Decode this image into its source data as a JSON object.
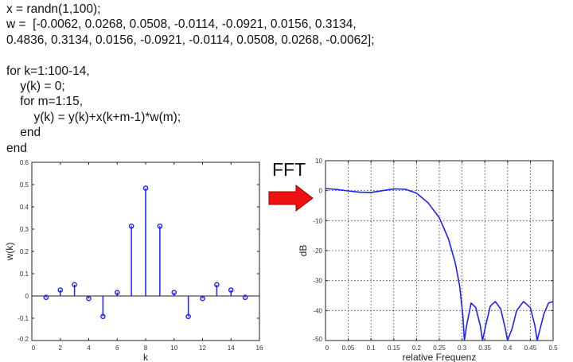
{
  "code": {
    "lines": [
      "x = randn(1,100);",
      "w =  [-0.0062, 0.0268, 0.0508, -0.0114, -0.0921, 0.0156, 0.3134,",
      "0.4836, 0.3134, 0.0156, -0.0921, -0.0114, 0.0508, 0.0268, -0.0062];",
      "",
      "for k=1:100-14,",
      "    y(k) = 0;",
      "    for m=1:15,",
      "        y(k) = y(k)+x(k+m-1)*w(m);",
      "    end",
      "end"
    ]
  },
  "fft_label": "FFT",
  "arrow_color": "#ee1111",
  "chart_data": [
    {
      "type": "stem",
      "xlabel": "k",
      "ylabel": "w(k)",
      "xlim": [
        0,
        16
      ],
      "ylim": [
        -0.2,
        0.6
      ],
      "xticks": [
        "0",
        "2",
        "4",
        "6",
        "8",
        "10",
        "12",
        "14",
        "16"
      ],
      "yticks": [
        "-0.2",
        "-0.1",
        "0",
        "0.1",
        "0.2",
        "0.3",
        "0.4",
        "0.5",
        "0.6"
      ],
      "grid": false,
      "color": "#1f1fff",
      "x": [
        1,
        2,
        3,
        4,
        5,
        6,
        7,
        8,
        9,
        10,
        11,
        12,
        13,
        14,
        15
      ],
      "y": [
        -0.0062,
        0.0268,
        0.0508,
        -0.0114,
        -0.0921,
        0.0156,
        0.3134,
        0.4836,
        0.3134,
        0.0156,
        -0.0921,
        -0.0114,
        0.0508,
        0.0268,
        -0.0062
      ]
    },
    {
      "type": "line",
      "xlabel": "relative Frequenz",
      "ylabel": "dB",
      "xlim": [
        0,
        0.5
      ],
      "ylim": [
        -50,
        10
      ],
      "xticks": [
        "0",
        "0.05",
        "0.1",
        "0.15",
        "0.2",
        "0.25",
        "0.3",
        "0.35",
        "0.4",
        "0.45",
        "0.5"
      ],
      "yticks": [
        "-50",
        "-40",
        "-30",
        "-20",
        "-10",
        "0",
        "10"
      ],
      "grid": true,
      "color": "#1f1fff",
      "x": [
        0,
        0.025,
        0.05,
        0.075,
        0.1,
        0.125,
        0.15,
        0.175,
        0.2,
        0.225,
        0.25,
        0.27,
        0.285,
        0.295,
        0.302,
        0.305,
        0.31,
        0.32,
        0.33,
        0.34,
        0.345,
        0.352,
        0.362,
        0.373,
        0.385,
        0.395,
        0.4,
        0.41,
        0.42,
        0.435,
        0.45,
        0.46,
        0.465,
        0.47,
        0.48,
        0.49,
        0.5
      ],
      "y": [
        0.7,
        0.4,
        -0.1,
        -0.5,
        -0.6,
        0,
        0.6,
        0.5,
        -0.8,
        -4,
        -9,
        -16,
        -24,
        -32,
        -42,
        -50,
        -45,
        -37.5,
        -39,
        -45,
        -50,
        -45,
        -38.5,
        -37,
        -39.5,
        -46,
        -50,
        -46,
        -40,
        -37,
        -39,
        -45,
        -50,
        -47,
        -41,
        -37.5,
        -37
      ]
    }
  ]
}
